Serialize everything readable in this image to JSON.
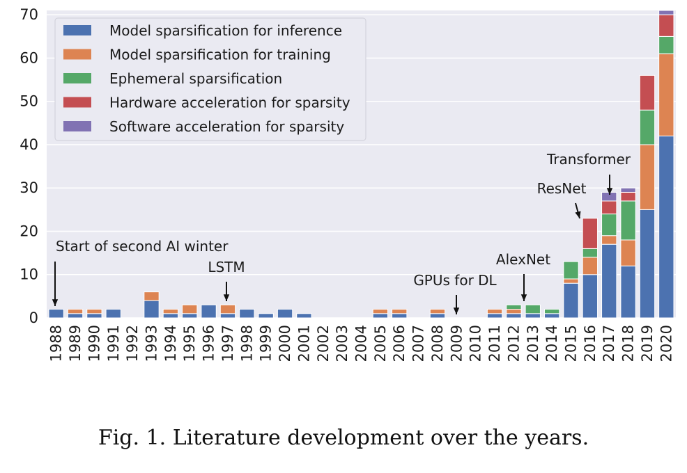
{
  "caption": "Fig. 1.  Literature development over the years.",
  "chart_data": {
    "type": "bar",
    "stacked": true,
    "categories": [
      "1988",
      "1989",
      "1990",
      "1991",
      "1992",
      "1993",
      "1994",
      "1995",
      "1996",
      "1997",
      "1998",
      "1999",
      "2000",
      "2001",
      "2002",
      "2003",
      "2004",
      "2005",
      "2006",
      "2007",
      "2008",
      "2009",
      "2010",
      "2011",
      "2012",
      "2013",
      "2014",
      "2015",
      "2016",
      "2017",
      "2018",
      "2019",
      "2020"
    ],
    "ylim": [
      0,
      71
    ],
    "yticks": [
      0,
      10,
      20,
      30,
      40,
      50,
      60,
      70
    ],
    "grid": true,
    "legend_position": "top-left",
    "series": [
      {
        "name": "Model sparsification for inference",
        "color": "#4c72b0",
        "values": [
          2,
          1,
          1,
          2,
          0,
          4,
          1,
          1,
          3,
          1,
          2,
          1,
          2,
          1,
          0,
          0,
          0,
          1,
          1,
          0,
          1,
          0,
          0,
          1,
          1,
          1,
          1,
          8,
          10,
          17,
          12,
          25,
          42
        ]
      },
      {
        "name": "Model sparsification for training",
        "color": "#dd8452",
        "values": [
          0,
          1,
          1,
          0,
          0,
          2,
          1,
          2,
          0,
          2,
          0,
          0,
          0,
          0,
          0,
          0,
          0,
          1,
          1,
          0,
          1,
          0,
          0,
          1,
          1,
          0,
          0,
          1,
          4,
          2,
          6,
          15,
          19
        ]
      },
      {
        "name": "Ephemeral sparsification",
        "color": "#55a868",
        "values": [
          0,
          0,
          0,
          0,
          0,
          0,
          0,
          0,
          0,
          0,
          0,
          0,
          0,
          0,
          0,
          0,
          0,
          0,
          0,
          0,
          0,
          0,
          0,
          0,
          1,
          2,
          1,
          4,
          2,
          5,
          9,
          8,
          4
        ]
      },
      {
        "name": "Hardware acceleration for sparsity",
        "color": "#c44e52",
        "values": [
          0,
          0,
          0,
          0,
          0,
          0,
          0,
          0,
          0,
          0,
          0,
          0,
          0,
          0,
          0,
          0,
          0,
          0,
          0,
          0,
          0,
          0,
          0,
          0,
          0,
          0,
          0,
          0,
          7,
          3,
          2,
          8,
          5
        ]
      },
      {
        "name": "Software acceleration for sparsity",
        "color": "#8172b3",
        "values": [
          0,
          0,
          0,
          0,
          0,
          0,
          0,
          0,
          0,
          0,
          0,
          0,
          0,
          0,
          0,
          0,
          0,
          0,
          0,
          0,
          0,
          0,
          0,
          0,
          0,
          0,
          0,
          0,
          0,
          2,
          1,
          0,
          1
        ]
      }
    ],
    "annotations": [
      {
        "text": "Start of second AI winter",
        "year": "1988"
      },
      {
        "text": "LSTM",
        "year": "1997"
      },
      {
        "text": "GPUs for DL",
        "year": "2009"
      },
      {
        "text": "AlexNet",
        "year": "2013"
      },
      {
        "text": "ResNet",
        "year": "2015"
      },
      {
        "text": "Transformer",
        "year": "2017"
      }
    ]
  }
}
